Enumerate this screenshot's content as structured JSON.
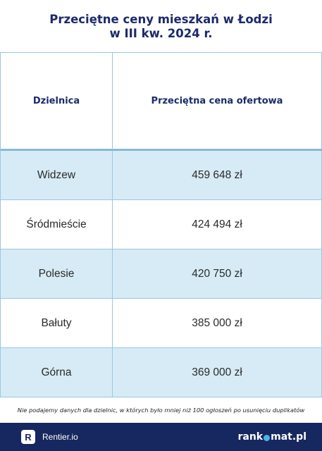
{
  "title": {
    "line1": "Przeciętne ceny mieszkań w Łodzi",
    "line2": "w III kw. 2024 r."
  },
  "table": {
    "headers": [
      "Dzielnica",
      "Przeciętna cena ofertowa"
    ],
    "rows": [
      {
        "district": "Widzew",
        "price": "459 648 zł"
      },
      {
        "district": "Śródmieście",
        "price": "424 494 zł"
      },
      {
        "district": "Polesie",
        "price": "420 750 zł"
      },
      {
        "district": "Bałuty",
        "price": "385 000 zł"
      },
      {
        "district": "Górna",
        "price": "369 000 zł"
      }
    ]
  },
  "note": "Nie podajemy danych dla dzielnic, w których było mniej niż 100 ogłoszeń po usunięciu duplikatów",
  "footer": {
    "left_logo_letter": "R",
    "left_brand": "Rentier.io",
    "right_brand_part1": "rank",
    "right_brand_part2": "mat.pl"
  },
  "colors": {
    "title": "#1b2a6b",
    "shaded_row": "#d6ebf5",
    "border": "#9cc7df",
    "footer_bg": "#17275f",
    "accent_dot": "#4fb3e8"
  }
}
